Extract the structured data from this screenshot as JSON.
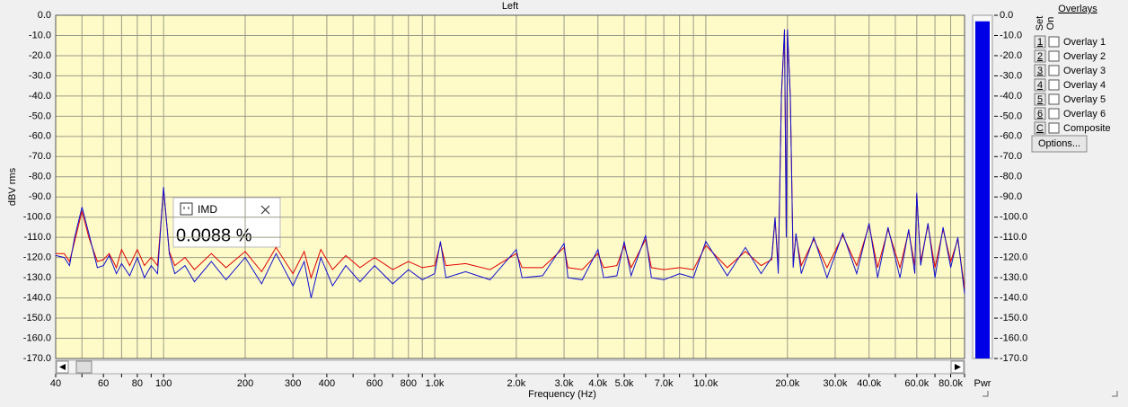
{
  "chart_data": {
    "type": "line",
    "title": "Left",
    "ylabel": "dBV rms",
    "xlabel": "Frequency (Hz)",
    "xscale": "log",
    "grid": true,
    "xlim": [
      40,
      90000
    ],
    "ylim": [
      -170,
      0
    ],
    "xticks": [
      40,
      60,
      80,
      100,
      200,
      300,
      400,
      600,
      800,
      {
        "value": 1000,
        "label": "1.0k"
      },
      {
        "value": 2000,
        "label": "2.0k"
      },
      {
        "value": 3000,
        "label": "3.0k"
      },
      {
        "value": 4000,
        "label": "4.0k"
      },
      {
        "value": 5000,
        "label": "5.0k"
      },
      {
        "value": 7000,
        "label": "7.0k"
      },
      {
        "value": 10000,
        "label": "10.0k"
      },
      {
        "value": 20000,
        "label": "20.0k"
      },
      {
        "value": 30000,
        "label": "30.0k"
      },
      {
        "value": 40000,
        "label": "40.0k"
      },
      {
        "value": 60000,
        "label": "60.0k"
      },
      {
        "value": 80000,
        "label": "80.0k"
      }
    ],
    "xminor_ticks": [
      50,
      70,
      90,
      500,
      700,
      900,
      6000,
      8000,
      9000,
      50000,
      70000,
      90000
    ],
    "yticks": [
      {
        "value": 0,
        "label": "0.0"
      },
      {
        "value": -10,
        "label": "-10.0"
      },
      {
        "value": -20,
        "label": "-20.0"
      },
      {
        "value": -30,
        "label": "-30.0"
      },
      {
        "value": -40,
        "label": "-40.0"
      },
      {
        "value": -50,
        "label": "-50.0"
      },
      {
        "value": -60,
        "label": "-60.0"
      },
      {
        "value": -70,
        "label": "-70.0"
      },
      {
        "value": -80,
        "label": "-80.0"
      },
      {
        "value": -90,
        "label": "-90.0"
      },
      {
        "value": -100,
        "label": "-100.0"
      },
      {
        "value": -110,
        "label": "-110.0"
      },
      {
        "value": -120,
        "label": "-120.0"
      },
      {
        "value": -130,
        "label": "-130.0"
      },
      {
        "value": -140,
        "label": "-140.0"
      },
      {
        "value": -150,
        "label": "-150.0"
      },
      {
        "value": -160,
        "label": "-160.0"
      },
      {
        "value": -170,
        "label": "-170.0"
      }
    ],
    "x": [
      40,
      43,
      45,
      47,
      50,
      53,
      57,
      60,
      63,
      67,
      70,
      75,
      80,
      85,
      90,
      95,
      100,
      105,
      110,
      120,
      130,
      150,
      170,
      200,
      230,
      260,
      300,
      330,
      350,
      380,
      420,
      470,
      530,
      600,
      700,
      800,
      900,
      1000,
      1050,
      1100,
      1300,
      1600,
      2000,
      2100,
      2500,
      3000,
      3100,
      3500,
      4000,
      4200,
      4700,
      5000,
      5300,
      6000,
      6300,
      7000,
      8000,
      9000,
      10000,
      12000,
      14000,
      16000,
      17500,
      18000,
      18500,
      19000,
      19500,
      19800,
      20000,
      20500,
      21000,
      21500,
      22500,
      25000,
      28000,
      32000,
      36000,
      40000,
      43000,
      47000,
      52000,
      56000,
      59000,
      60000,
      62000,
      66000,
      70000,
      75000,
      80000,
      85000,
      90000
    ],
    "series": [
      {
        "color": "#e00000",
        "values": [
          -118,
          -118,
          -122,
          -112,
          -97,
          -110,
          -122,
          -121,
          -118,
          -125,
          -116,
          -124,
          -116,
          -124,
          -120,
          -124,
          -86,
          -117,
          -124,
          -120,
          -126,
          -118,
          -125,
          -117,
          -127,
          -115,
          -128,
          -117,
          -130,
          -116,
          -126,
          -119,
          -125,
          -120,
          -126,
          -122,
          -125,
          -124,
          -113,
          -124,
          -123,
          -126,
          -118,
          -125,
          -125,
          -115,
          -125,
          -126,
          -118,
          -125,
          -124,
          -114,
          -125,
          -111,
          -125,
          -126,
          -125,
          -126,
          -114,
          -125,
          -117,
          -124,
          -121,
          -101,
          -124,
          -40,
          -8,
          -110,
          -8,
          -41,
          -122,
          -109,
          -124,
          -111,
          -125,
          -109,
          -124,
          -104,
          -125,
          -106,
          -125,
          -107,
          -124,
          -89,
          -122,
          -104,
          -125,
          -106,
          -122,
          -111,
          -135
        ]
      },
      {
        "color": "#1010d0",
        "values": [
          -119,
          -120,
          -124,
          -110,
          -95,
          -108,
          -125,
          -124,
          -119,
          -128,
          -123,
          -129,
          -120,
          -130,
          -124,
          -128,
          -85,
          -118,
          -128,
          -124,
          -132,
          -122,
          -131,
          -120,
          -133,
          -118,
          -134,
          -122,
          -140,
          -120,
          -134,
          -124,
          -132,
          -124,
          -133,
          -126,
          -131,
          -128,
          -112,
          -130,
          -127,
          -131,
          -116,
          -130,
          -129,
          -113,
          -130,
          -131,
          -116,
          -130,
          -129,
          -112,
          -129,
          -109,
          -130,
          -131,
          -128,
          -130,
          -112,
          -129,
          -115,
          -128,
          -120,
          -100,
          -128,
          -39,
          -7,
          -110,
          -7,
          -40,
          -125,
          -108,
          -128,
          -110,
          -130,
          -108,
          -128,
          -103,
          -130,
          -105,
          -130,
          -106,
          -128,
          -88,
          -124,
          -103,
          -130,
          -105,
          -125,
          -110,
          -138
        ]
      }
    ]
  },
  "level_meter": {
    "label": "Pwr",
    "value": -3,
    "color": "#0000e6"
  },
  "imd_readout": {
    "title": "IMD",
    "value": "0.0088 %"
  },
  "overlays": {
    "title": "Overlays",
    "set_label": "Set",
    "on_label": "On",
    "button": "Options...",
    "items": [
      {
        "key": "1",
        "name": "Overlay 1",
        "color": "#2f9a3a"
      },
      {
        "key": "2",
        "name": "Overlay 2",
        "color": "#2eaab0"
      },
      {
        "key": "3",
        "name": "Overlay 3",
        "color": "#9a2fb0"
      },
      {
        "key": "4",
        "name": "Overlay 4",
        "color": "#e030e0"
      },
      {
        "key": "5",
        "name": "Overlay 5",
        "color": "#9a6a30"
      },
      {
        "key": "6",
        "name": "Overlay 6",
        "color": "#f09a70"
      },
      {
        "key": "C",
        "name": "Composite",
        "color": "#000000"
      }
    ]
  }
}
